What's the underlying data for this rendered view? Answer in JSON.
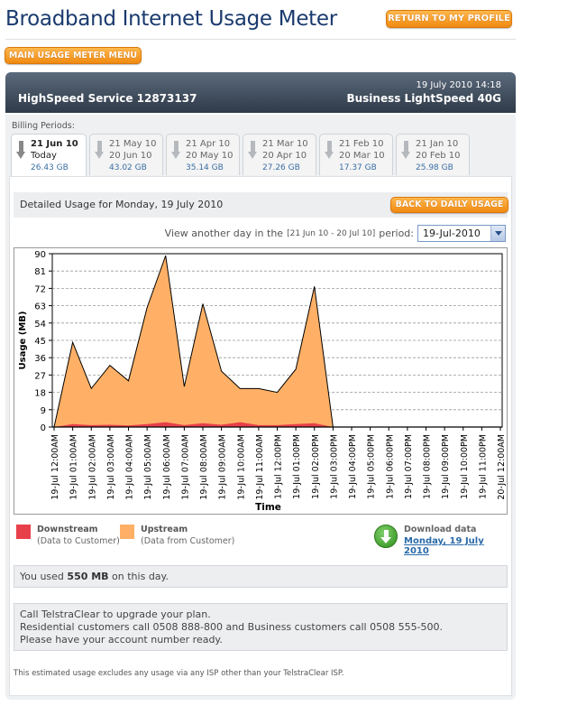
{
  "page_title": "Broadband Internet Usage Meter",
  "buttons": {
    "return_profile": "RETURN TO MY PROFILE",
    "main_menu": "MAIN USAGE METER MENU",
    "back_daily": "BACK TO DAILY USAGE"
  },
  "header": {
    "datetime": "19 July 2010 14:18",
    "service": "HighSpeed Service 12873137",
    "plan": "Business LightSpeed 40G"
  },
  "billing": {
    "label": "Billing Periods:",
    "periods": [
      {
        "line1": "21 Jun 10",
        "line2": "Today",
        "usage": "26.43 GB",
        "active": true
      },
      {
        "line1": "21 May 10",
        "line2": "20 Jun 10",
        "usage": "43.02 GB",
        "active": false
      },
      {
        "line1": "21 Apr 10",
        "line2": "20 May 10",
        "usage": "35.14 GB",
        "active": false
      },
      {
        "line1": "21 Mar 10",
        "line2": "20 Apr 10",
        "usage": "27.26 GB",
        "active": false
      },
      {
        "line1": "21 Feb 10",
        "line2": "20 Mar 10",
        "usage": "17.37 GB",
        "active": false
      },
      {
        "line1": "21 Jan 10",
        "line2": "20 Feb 10",
        "usage": "25.98 GB",
        "active": false
      }
    ]
  },
  "detail": {
    "title": "Detailed Usage for Monday, 19 July 2010",
    "view_text_1": "View another day in the",
    "view_range": "[21 Jun 10 - 20 Jul 10]",
    "view_text_2": "period:",
    "selected_day": "19-Jul-2010"
  },
  "chart_data": {
    "type": "area",
    "ylabel": "Usage (MB)",
    "xlabel": "Time",
    "ylim": [
      0,
      90
    ],
    "yticks": [
      0,
      9,
      18,
      27,
      36,
      45,
      54,
      63,
      72,
      81,
      90
    ],
    "grid": true,
    "categories": [
      "19-Jul 12:00AM",
      "19-Jul 01:00AM",
      "19-Jul 02:00AM",
      "19-Jul 03:00AM",
      "19-Jul 04:00AM",
      "19-Jul 05:00AM",
      "19-Jul 06:00AM",
      "19-Jul 07:00AM",
      "19-Jul 08:00AM",
      "19-Jul 09:00AM",
      "19-Jul 10:00AM",
      "19-Jul 11:00AM",
      "19-Jul 12:00PM",
      "19-Jul 01:00PM",
      "19-Jul 02:00PM",
      "19-Jul 03:00PM",
      "19-Jul 04:00PM",
      "19-Jul 05:00PM",
      "19-Jul 06:00PM",
      "19-Jul 07:00PM",
      "19-Jul 08:00PM",
      "19-Jul 09:00PM",
      "19-Jul 10:00PM",
      "19-Jul 11:00PM",
      "20-Jul 12:00AM"
    ],
    "series": [
      {
        "name": "Downstream",
        "color": "#e8404a",
        "values": [
          0,
          1.5,
          1,
          1.2,
          0.8,
          1.5,
          2.5,
          1,
          2,
          1.2,
          2.5,
          1,
          1,
          1.5,
          2,
          0,
          0,
          0,
          0,
          0,
          0,
          0,
          0,
          0,
          0
        ]
      },
      {
        "name": "Upstream",
        "color": "#ffb066",
        "values": [
          0,
          44,
          20,
          32,
          24,
          62,
          89,
          21,
          64,
          29,
          20,
          20,
          18,
          30,
          73,
          0,
          0,
          0,
          0,
          0,
          0,
          0,
          0,
          0,
          0
        ]
      }
    ]
  },
  "legend": [
    {
      "name": "Downstream",
      "sub": "(Data to Customer)",
      "color": "#e8404a"
    },
    {
      "name": "Upstream",
      "sub": "(Data from Customer)",
      "color": "#ffb066"
    }
  ],
  "download": {
    "title": "Download data",
    "link": "Monday, 19 July 2010"
  },
  "usage_summary": {
    "prefix": "You used",
    "amount": "550 MB",
    "suffix": "on this day."
  },
  "upgrade": {
    "line1": "Call TelstraClear to upgrade your plan.",
    "line2": "Residential customers call 0508 888-800 and Business customers call 0508 555-500.",
    "line3": "Please have your account number ready."
  },
  "footnote": "This estimated usage excludes any usage via any ISP other than your TelstraClear ISP."
}
